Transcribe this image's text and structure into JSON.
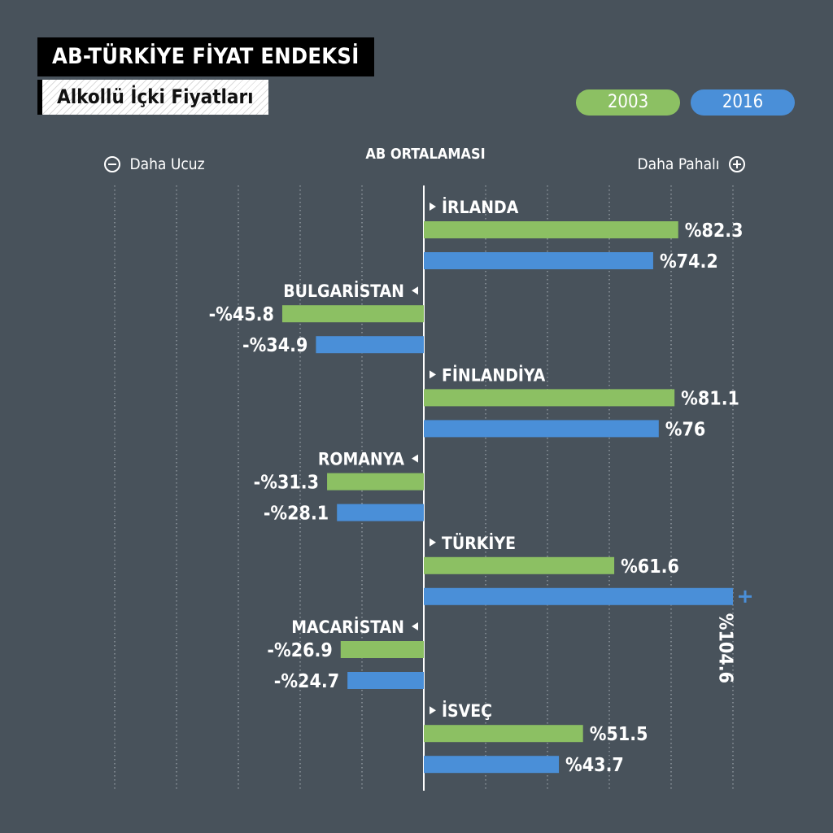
{
  "header": {
    "title": "AB-TÜRKİYE FİYAT ENDEKSİ",
    "subtitle": "Alkollü İçki Fiyatları"
  },
  "legend": {
    "label_2003": "2003",
    "label_2016": "2016"
  },
  "axis_labels": {
    "cheaper": "Daha Ucuz",
    "center": "AB ORTALAMASI",
    "expensive": "Daha Pahalı"
  },
  "colors": {
    "background": "#48525b",
    "series_2003": "#8cc063",
    "series_2016": "#4a8fd8"
  },
  "icons": {
    "minus": "minus-circle-icon",
    "plus": "plus-circle-icon",
    "right_arrow": "triangle-right-icon",
    "left_arrow": "triangle-left-icon",
    "overflow": "plus-icon"
  },
  "chart_data": {
    "type": "bar",
    "orientation": "horizontal",
    "baseline_label": "AB ORTALAMASI",
    "xlim": [
      -100,
      100
    ],
    "grid": true,
    "legend_position": "top-right",
    "categories": [
      "İRLANDA",
      "BULGARİSTAN",
      "FİNLANDİYA",
      "ROMANYA",
      "TÜRKİYE",
      "MACARİSTAN",
      "İSVEÇ"
    ],
    "series": [
      {
        "name": "2003",
        "values": [
          82.3,
          -45.8,
          81.1,
          -31.3,
          61.6,
          -26.9,
          51.5
        ],
        "labels": [
          "%82.3",
          "-%45.8",
          "%81.1",
          "-%31.3",
          "%61.6",
          "-%26.9",
          "%51.5"
        ]
      },
      {
        "name": "2016",
        "values": [
          74.2,
          -34.9,
          76,
          -28.1,
          104.6,
          -24.7,
          43.7
        ],
        "labels": [
          "%74.2",
          "-%34.9",
          "%76",
          "-%28.1",
          "%104.6",
          "-%24.7",
          "%43.7"
        ]
      }
    ]
  }
}
